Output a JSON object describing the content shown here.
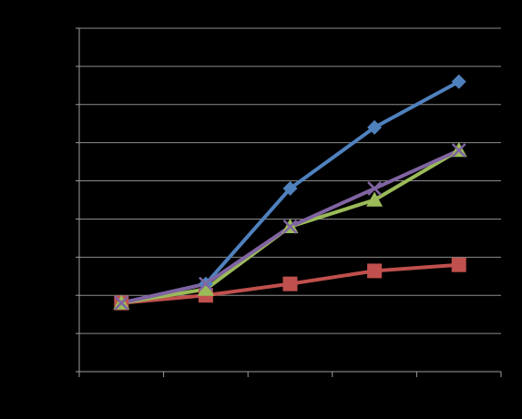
{
  "chart_data": {
    "type": "line",
    "x": [
      1,
      2,
      3,
      4,
      5
    ],
    "xlim": [
      0.5,
      5.5
    ],
    "ylim": [
      -0.9,
      3.6
    ],
    "y_gridlines": [
      -0.9,
      -0.4,
      0.1,
      0.6,
      1.1,
      1.6,
      2.1,
      2.6,
      3.1,
      3.6
    ],
    "x_ticks": [
      0.5,
      1.5,
      2.5,
      3.5,
      4.5,
      5.5
    ],
    "grid": true,
    "title": "",
    "xlabel": "",
    "ylabel": "",
    "series": [
      {
        "color": "#4F81BD",
        "marker": "diamond",
        "values": [
          0,
          0.25,
          1.5,
          2.3,
          2.9
        ]
      },
      {
        "color": "#C0504D",
        "marker": "square",
        "values": [
          0,
          0.1,
          0.25,
          0.42,
          0.5
        ]
      },
      {
        "color": "#9BBB59",
        "marker": "triangle",
        "values": [
          0,
          0.18,
          1.0,
          1.35,
          2.0
        ]
      },
      {
        "color": "#8064A2",
        "marker": "x",
        "values": [
          0,
          0.25,
          1.0,
          1.5,
          2.0
        ]
      }
    ]
  },
  "style": {
    "background": "#000000",
    "axis_color": "#9E9E9E",
    "grid_color": "#8C8C8C"
  }
}
